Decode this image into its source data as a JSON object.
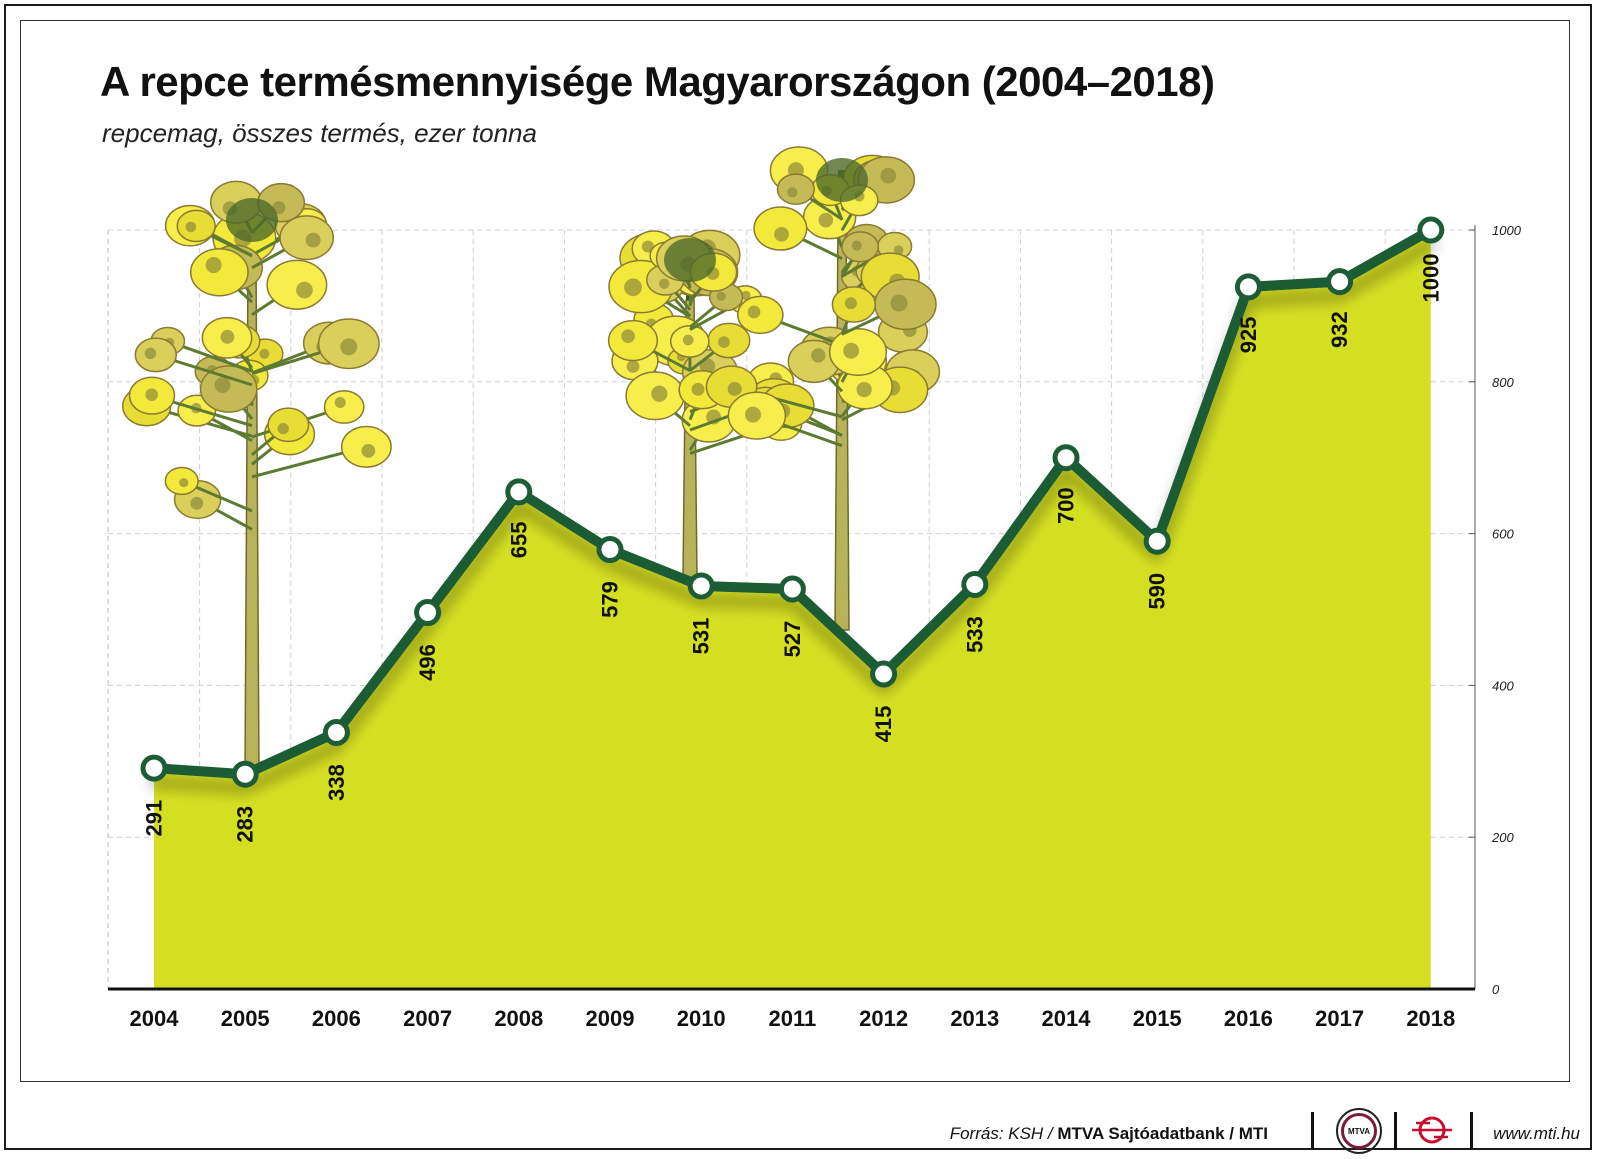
{
  "header": {
    "title": "A repce termésmennyisége Magyarországon (2004–2018)",
    "subtitle": "repcemag, összes termés, ezer tonna"
  },
  "chart_data": {
    "type": "area",
    "title": "A repce termésmennyisége Magyarországon (2004–2018)",
    "subtitle": "repcemag, összes termés, ezer tonna",
    "categories": [
      "2004",
      "2005",
      "2006",
      "2007",
      "2008",
      "2009",
      "2010",
      "2011",
      "2012",
      "2013",
      "2014",
      "2015",
      "2016",
      "2017",
      "2018"
    ],
    "values": [
      291,
      283,
      338,
      496,
      655,
      579,
      531,
      527,
      415,
      533,
      700,
      590,
      925,
      932,
      1000
    ],
    "ylim": [
      0,
      1000
    ],
    "yticks": [
      0,
      200,
      400,
      600,
      800,
      1000
    ],
    "y_axis_side": "right",
    "grid": true,
    "legend": "none",
    "colors": {
      "area": "#d5df22",
      "line": "#1c5c36",
      "marker_fill": "#ffffff",
      "grid": "#cfcfcf",
      "axis": "#111111"
    },
    "illustration": "rapeseed-flowers"
  },
  "footer": {
    "source_prefix": "Forrás: KSH / ",
    "source_bold": "MTVA Sajtóadatbank / MTI",
    "logo_mtva": "MTVA",
    "url": "www.mti.hu"
  }
}
